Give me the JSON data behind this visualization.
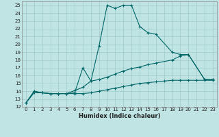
{
  "xlabel": "Humidex (Indice chaleur)",
  "xlim": [
    -0.5,
    23.5
  ],
  "ylim": [
    12,
    25.5
  ],
  "xticks": [
    0,
    1,
    2,
    3,
    4,
    5,
    6,
    7,
    8,
    9,
    10,
    11,
    12,
    13,
    14,
    15,
    16,
    17,
    18,
    19,
    20,
    21,
    22,
    23
  ],
  "yticks": [
    12,
    13,
    14,
    15,
    16,
    17,
    18,
    19,
    20,
    21,
    22,
    23,
    24,
    25
  ],
  "bg_color": "#c0e4e4",
  "grid_color": "#a0cccc",
  "line_color": "#006666",
  "s1_x": [
    0,
    1,
    2,
    3,
    4,
    5,
    6,
    7,
    8,
    9,
    10,
    11,
    12,
    13,
    14,
    15,
    16,
    18,
    19,
    20,
    22,
    23
  ],
  "s1_y": [
    12.5,
    14.0,
    13.8,
    13.7,
    13.7,
    13.7,
    13.8,
    17.0,
    15.3,
    19.8,
    25.0,
    24.6,
    25.0,
    25.0,
    22.3,
    21.5,
    21.3,
    19.0,
    18.7,
    18.7,
    15.5,
    15.5
  ],
  "s2_x": [
    0,
    1,
    2,
    3,
    4,
    5,
    6,
    7,
    8,
    9,
    10,
    11,
    12,
    13,
    14,
    15,
    16,
    18,
    19,
    20,
    22,
    23
  ],
  "s2_y": [
    12.5,
    14.0,
    13.8,
    13.7,
    13.7,
    13.7,
    14.1,
    14.5,
    15.3,
    15.5,
    15.8,
    16.2,
    16.6,
    16.9,
    17.1,
    17.4,
    17.6,
    18.0,
    18.5,
    18.7,
    15.5,
    15.5
  ],
  "s3_x": [
    0,
    1,
    2,
    3,
    4,
    5,
    6,
    7,
    8,
    9,
    10,
    11,
    12,
    13,
    14,
    15,
    16,
    17,
    18,
    19,
    20,
    21,
    22,
    23
  ],
  "s3_y": [
    12.5,
    13.8,
    13.8,
    13.7,
    13.7,
    13.7,
    13.7,
    13.7,
    13.8,
    14.0,
    14.2,
    14.4,
    14.6,
    14.8,
    15.0,
    15.1,
    15.2,
    15.3,
    15.4,
    15.4,
    15.4,
    15.4,
    15.4,
    15.4
  ]
}
